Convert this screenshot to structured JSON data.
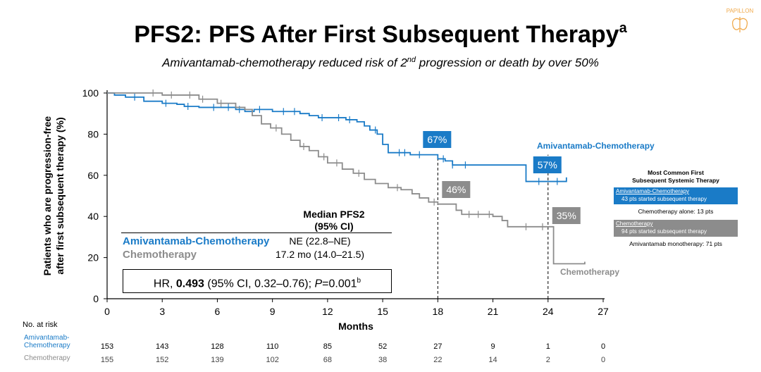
{
  "header": {
    "title": "PFS2: PFS After First Subsequent Therapy",
    "title_sup": "a",
    "subtitle_pre": "Amivantamab-chemotherapy reduced risk of 2",
    "subtitle_sup": "nd",
    "subtitle_post": " progression or death by over 50%",
    "logo_text": "PAPILLON"
  },
  "colors": {
    "amivantamab": "#1a7bc7",
    "chemotherapy": "#8c8c8c",
    "brand": "#f0a94a"
  },
  "chart_data": {
    "type": "line",
    "title": "PFS2: PFS After First Subsequent Therapy",
    "xlabel": "Months",
    "ylabel_line1": "Patients who are progression-free",
    "ylabel_line2": "after first subsequent therapy (%)",
    "xlim": [
      0,
      27
    ],
    "ylim": [
      0,
      100
    ],
    "x_ticks": [
      0,
      3,
      6,
      9,
      12,
      15,
      18,
      21,
      24,
      27
    ],
    "y_ticks": [
      0,
      20,
      40,
      60,
      80,
      100
    ],
    "series": [
      {
        "name": "Amivantamab-Chemotherapy",
        "color": "#1a7bc7",
        "step_points": [
          [
            0,
            100
          ],
          [
            0.4,
            99
          ],
          [
            1,
            98
          ],
          [
            2,
            96
          ],
          [
            3,
            95
          ],
          [
            3.8,
            94.5
          ],
          [
            4.2,
            93.5
          ],
          [
            5,
            93
          ],
          [
            6,
            93
          ],
          [
            7,
            92
          ],
          [
            7.5,
            91
          ],
          [
            8,
            92
          ],
          [
            9,
            91
          ],
          [
            10.5,
            90
          ],
          [
            11,
            89
          ],
          [
            11.5,
            88
          ],
          [
            12,
            88
          ],
          [
            13,
            87
          ],
          [
            13.6,
            86
          ],
          [
            14,
            84
          ],
          [
            14.3,
            82
          ],
          [
            14.7,
            80
          ],
          [
            15,
            75
          ],
          [
            15.3,
            71
          ],
          [
            16,
            71
          ],
          [
            16.5,
            70
          ],
          [
            17.5,
            70
          ],
          [
            18,
            68
          ],
          [
            18.4,
            67
          ],
          [
            18.8,
            65
          ],
          [
            19,
            65
          ],
          [
            22,
            65
          ],
          [
            22.8,
            57
          ],
          [
            24,
            57
          ],
          [
            25,
            57
          ],
          [
            25,
            59
          ]
        ],
        "censor_x": [
          1.5,
          3.2,
          4.4,
          5.8,
          6.6,
          7.2,
          8.3,
          9.6,
          10.2,
          11.7,
          12.6,
          13.2,
          14.6,
          15.9,
          16.2,
          17.0,
          18.3,
          18.8,
          19.5,
          23.5,
          24.5
        ],
        "landmark_18_label": "67%",
        "landmark_24_label": "57%"
      },
      {
        "name": "Chemotherapy",
        "color": "#8c8c8c",
        "step_points": [
          [
            0,
            100
          ],
          [
            1,
            100
          ],
          [
            2,
            100
          ],
          [
            3,
            99
          ],
          [
            4,
            99
          ],
          [
            5,
            97
          ],
          [
            6,
            95
          ],
          [
            7,
            93
          ],
          [
            7.5,
            92
          ],
          [
            7.9,
            89
          ],
          [
            8.4,
            85
          ],
          [
            8.9,
            83
          ],
          [
            9.5,
            80
          ],
          [
            10,
            77
          ],
          [
            10.5,
            74
          ],
          [
            11,
            72
          ],
          [
            11.5,
            69
          ],
          [
            12,
            66
          ],
          [
            12.8,
            63
          ],
          [
            13.4,
            61
          ],
          [
            14,
            58
          ],
          [
            14.6,
            56
          ],
          [
            15.3,
            54
          ],
          [
            16,
            53
          ],
          [
            16.6,
            51
          ],
          [
            17,
            49
          ],
          [
            17.5,
            47
          ],
          [
            18,
            46
          ],
          [
            18.5,
            46
          ],
          [
            19,
            43
          ],
          [
            19.3,
            41
          ],
          [
            20,
            41
          ],
          [
            21,
            40
          ],
          [
            21.5,
            38
          ],
          [
            21.8,
            35
          ],
          [
            24.3,
            35
          ],
          [
            24.3,
            17
          ],
          [
            26,
            17
          ],
          [
            26,
            18
          ]
        ],
        "censor_x": [
          2.5,
          3.5,
          4.5,
          5.2,
          6.2,
          9.2,
          10.7,
          11.8,
          12.5,
          13.7,
          15.8,
          17.8,
          19.7,
          20.2,
          20.8,
          22.8,
          23.7
        ],
        "landmark_18_label": "46%",
        "landmark_24_label": "35%"
      }
    ],
    "landmarks_x": [
      18,
      24
    ],
    "series_labels": {
      "amivantamab": "Amivantamab-Chemotherapy",
      "chemotherapy": "Chemotherapy"
    },
    "median_table": {
      "header_line1": "Median PFS2",
      "header_line2": "(95% CI)",
      "rows": [
        {
          "name": "Amivantamab-Chemotherapy",
          "value": "NE (22.8–NE)"
        },
        {
          "name": "Chemotherapy",
          "value": "17.2 mo (14.0–21.5)"
        }
      ]
    },
    "hazard_ratio": {
      "prefix": "HR, ",
      "value": "0.493",
      "ci": " (95% CI, 0.32–0.76); ",
      "p_label": "P",
      "p_value": "=0.001",
      "p_sup": "b"
    },
    "risk_table": {
      "title": "No. at risk",
      "rows": [
        {
          "label_line1": "Amivantamab-",
          "label_line2": "Chemotherapy",
          "values": [
            "153",
            "143",
            "128",
            "110",
            "85",
            "52",
            "27",
            "9",
            "1",
            "0"
          ]
        },
        {
          "label_line1": "Chemotherapy",
          "label_line2": "",
          "values": [
            "155",
            "152",
            "139",
            "102",
            "68",
            "38",
            "22",
            "14",
            "2",
            "0"
          ]
        }
      ]
    },
    "side_panel": {
      "title_line1": "Most Common First",
      "title_line2": "Subsequent Systemic Therapy",
      "groups": [
        {
          "name": "Amivantamab-Chemotherapy",
          "detail": "43 pts started subsequent therapy",
          "note": "Chemotherapy alone: 13 pts"
        },
        {
          "name": "Chemotherapy",
          "detail": "94 pts started subsequent therapy",
          "note": "Amivantamab monotherapy: 71 pts"
        }
      ]
    }
  }
}
